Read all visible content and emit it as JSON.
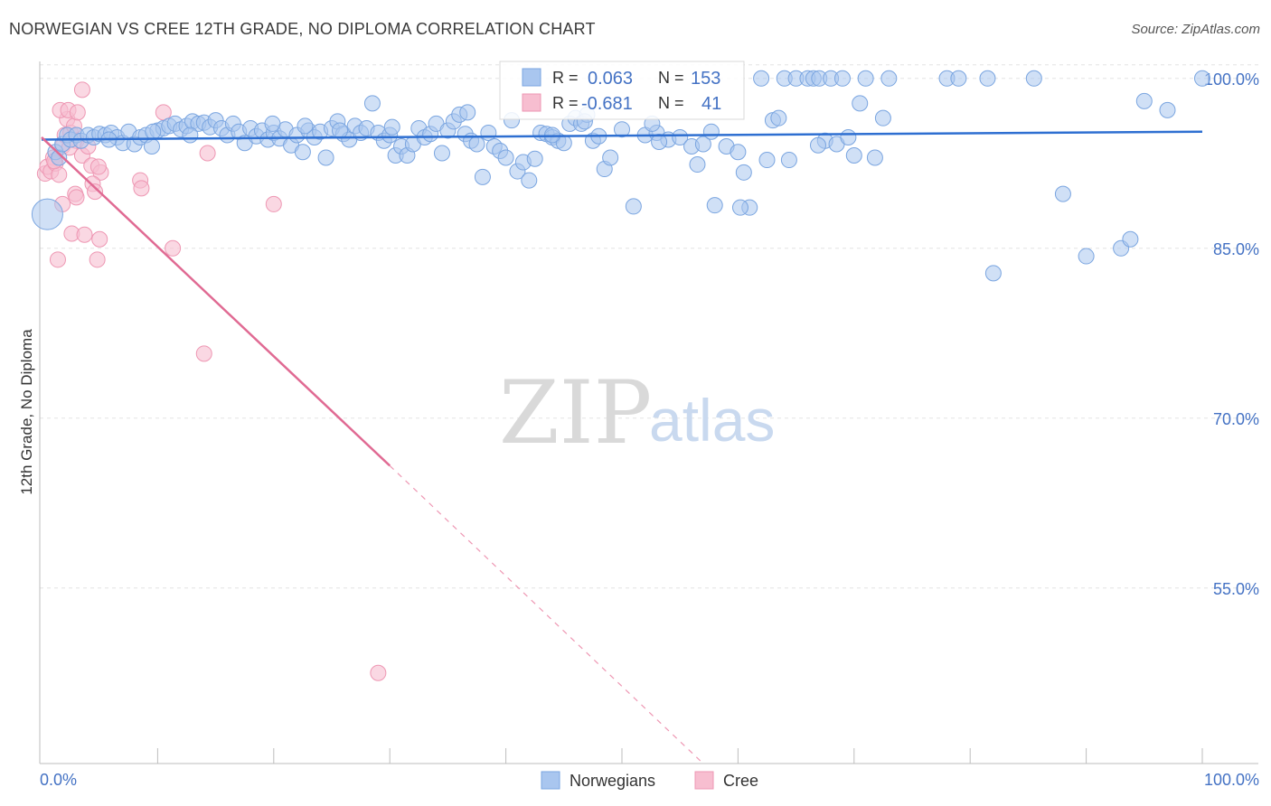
{
  "title": "NORWEGIAN VS CREE 12TH GRADE, NO DIPLOMA CORRELATION CHART",
  "source": "Source: ZipAtlas.com",
  "watermark": {
    "zip": "ZIP",
    "atlas": "atlas"
  },
  "colors": {
    "blue_fill": "#a9c6ef",
    "blue_stroke": "#7aa5e0",
    "blue_line": "#2e6fd1",
    "pink_fill": "#f7bed0",
    "pink_stroke": "#ee97b3",
    "pink_line": "#e06a93",
    "grid": "#e3e3e3",
    "tick_text": "#4472c4"
  },
  "legend": {
    "row1": {
      "r_label": "R =",
      "r_value": "0.063",
      "n_label": "N =",
      "n_value": "153"
    },
    "row2": {
      "r_label": "R =",
      "r_value": "-0.681",
      "n_label": "N =",
      "n_value": "41"
    }
  },
  "bottom_legend": {
    "norwegians": "Norwegians",
    "cree": "Cree"
  },
  "chart_data": {
    "type": "scatter",
    "title": "NORWEGIAN VS CREE 12TH GRADE, NO DIPLOMA CORRELATION CHART",
    "xlabel": "",
    "ylabel": "12th Grade, No Diploma",
    "xlim": [
      0,
      100
    ],
    "ylim": [
      39.5,
      101.5
    ],
    "x_tick_labels": [
      "0.0%",
      "100.0%"
    ],
    "y_ticks": [
      55,
      70,
      85,
      100
    ],
    "y_tick_labels": [
      "55.0%",
      "70.0%",
      "85.0%",
      "100.0%"
    ],
    "grid": true,
    "series": [
      {
        "name": "Norwegians",
        "r": 0.063,
        "n": 153,
        "trend": {
          "x0": 0,
          "y0": 94.6,
          "x1": 100,
          "y1": 95.3
        },
        "points": [
          [
            0.5,
            88.0
          ],
          [
            1.2,
            93.5
          ],
          [
            1.5,
            93.0
          ],
          [
            1.8,
            94.2
          ],
          [
            2.2,
            95.0
          ],
          [
            2.5,
            94.6
          ],
          [
            3.0,
            95.0
          ],
          [
            3.4,
            94.5
          ],
          [
            4.0,
            95.0
          ],
          [
            4.5,
            94.8
          ],
          [
            5.0,
            95.1
          ],
          [
            5.5,
            95.0
          ],
          [
            6.0,
            95.2
          ],
          [
            6.5,
            94.8
          ],
          [
            7.0,
            94.3
          ],
          [
            7.5,
            95.3
          ],
          [
            8.0,
            94.2
          ],
          [
            8.5,
            94.8
          ],
          [
            9.0,
            95.0
          ],
          [
            9.5,
            94.0
          ],
          [
            10.0,
            95.4
          ],
          [
            10.5,
            95.6
          ],
          [
            11.0,
            95.8
          ],
          [
            11.5,
            96.0
          ],
          [
            12.0,
            95.5
          ],
          [
            12.5,
            95.8
          ],
          [
            13.0,
            96.2
          ],
          [
            13.5,
            96.0
          ],
          [
            14.0,
            96.1
          ],
          [
            14.5,
            95.7
          ],
          [
            15.0,
            96.3
          ],
          [
            15.5,
            95.6
          ],
          [
            16.0,
            95.0
          ],
          [
            16.5,
            96.0
          ],
          [
            17.0,
            95.3
          ],
          [
            17.5,
            94.3
          ],
          [
            18.0,
            95.6
          ],
          [
            18.5,
            94.9
          ],
          [
            19.0,
            95.4
          ],
          [
            19.5,
            94.6
          ],
          [
            20.0,
            95.2
          ],
          [
            20.5,
            94.7
          ],
          [
            21.0,
            95.5
          ],
          [
            21.5,
            94.1
          ],
          [
            22.0,
            95.0
          ],
          [
            22.5,
            93.5
          ],
          [
            23.0,
            95.4
          ],
          [
            23.5,
            94.8
          ],
          [
            24.0,
            95.3
          ],
          [
            24.5,
            93.0
          ],
          [
            25.0,
            95.6
          ],
          [
            25.5,
            96.2
          ],
          [
            26.0,
            95.1
          ],
          [
            26.5,
            94.6
          ],
          [
            27.0,
            95.8
          ],
          [
            27.5,
            95.2
          ],
          [
            28.0,
            95.6
          ],
          [
            28.5,
            97.8
          ],
          [
            29.0,
            95.2
          ],
          [
            29.5,
            94.5
          ],
          [
            30.0,
            95.0
          ],
          [
            30.5,
            93.2
          ],
          [
            31.0,
            94.0
          ],
          [
            31.5,
            93.2
          ],
          [
            32.0,
            94.2
          ],
          [
            32.5,
            95.6
          ],
          [
            33.0,
            94.8
          ],
          [
            33.5,
            95.1
          ],
          [
            34.0,
            96.0
          ],
          [
            34.5,
            93.4
          ],
          [
            35.0,
            95.4
          ],
          [
            35.5,
            96.2
          ],
          [
            36.0,
            96.8
          ],
          [
            36.5,
            95.1
          ],
          [
            37.0,
            94.5
          ],
          [
            37.5,
            94.2
          ],
          [
            38.0,
            91.3
          ],
          [
            38.5,
            95.2
          ],
          [
            39.0,
            94.0
          ],
          [
            39.5,
            93.6
          ],
          [
            40.0,
            93.0
          ],
          [
            40.5,
            96.3
          ],
          [
            41.0,
            91.8
          ],
          [
            41.5,
            92.6
          ],
          [
            42.0,
            91.0
          ],
          [
            42.5,
            92.9
          ],
          [
            43.0,
            95.2
          ],
          [
            43.5,
            95.1
          ],
          [
            44.0,
            94.8
          ],
          [
            44.5,
            94.5
          ],
          [
            45.0,
            94.3
          ],
          [
            45.5,
            96.0
          ],
          [
            46.0,
            96.5
          ],
          [
            46.5,
            96.0
          ],
          [
            47.0,
            96.8
          ],
          [
            47.5,
            94.5
          ],
          [
            48.0,
            94.9
          ],
          [
            48.5,
            92.0
          ],
          [
            49.0,
            93.0
          ],
          [
            51.0,
            88.7
          ],
          [
            52.0,
            95.0
          ],
          [
            53.0,
            95.2
          ],
          [
            54.0,
            94.6
          ],
          [
            55.0,
            94.8
          ],
          [
            56.0,
            94.0
          ],
          [
            56.5,
            92.4
          ],
          [
            57.0,
            94.2
          ],
          [
            58.0,
            88.8
          ],
          [
            59.0,
            94.0
          ],
          [
            60.0,
            93.5
          ],
          [
            60.5,
            91.7
          ],
          [
            61.0,
            88.6
          ],
          [
            62.0,
            100.0
          ],
          [
            62.5,
            92.8
          ],
          [
            63.0,
            96.3
          ],
          [
            63.5,
            96.5
          ],
          [
            64.0,
            100.0
          ],
          [
            65.0,
            100.0
          ],
          [
            66.0,
            100.0
          ],
          [
            66.5,
            100.0
          ],
          [
            67.0,
            100.0
          ],
          [
            67.5,
            94.5
          ],
          [
            68.0,
            100.0
          ],
          [
            68.5,
            94.2
          ],
          [
            69.0,
            100.0
          ],
          [
            69.5,
            94.8
          ],
          [
            70.0,
            93.2
          ],
          [
            70.5,
            97.8
          ],
          [
            71.0,
            100.0
          ],
          [
            72.5,
            96.5
          ],
          [
            73.0,
            100.0
          ],
          [
            78.0,
            100.0
          ],
          [
            79.0,
            100.0
          ],
          [
            81.5,
            100.0
          ],
          [
            85.5,
            100.0
          ],
          [
            90.0,
            84.3
          ],
          [
            93.0,
            85.0
          ],
          [
            93.8,
            85.8
          ],
          [
            95.0,
            98.0
          ],
          [
            97.0,
            97.2
          ],
          [
            100.0,
            100.0
          ],
          [
            88.0,
            89.8
          ],
          [
            60.2,
            88.6
          ],
          [
            82.0,
            82.8
          ],
          [
            5.8,
            94.6
          ],
          [
            12.8,
            95.0
          ],
          [
            19.9,
            96.0
          ],
          [
            25.7,
            95.4
          ],
          [
            30.2,
            95.7
          ],
          [
            36.7,
            97.0
          ],
          [
            44.0,
            95.0
          ],
          [
            50.0,
            95.5
          ],
          [
            53.2,
            94.4
          ],
          [
            57.7,
            95.3
          ],
          [
            64.4,
            92.8
          ],
          [
            66.9,
            94.1
          ],
          [
            71.8,
            93.0
          ],
          [
            46.8,
            96.2
          ],
          [
            52.6,
            96.0
          ],
          [
            9.6,
            95.3
          ],
          [
            22.7,
            95.8
          ]
        ]
      },
      {
        "name": "Cree",
        "r": -0.681,
        "n": 41,
        "trend": {
          "x0": 0,
          "y0": 94.8,
          "x1": 30,
          "y1": 65.8,
          "dash_to_x": 57,
          "dash_to_y": 39.5
        },
        "points": [
          [
            0.3,
            91.6
          ],
          [
            0.5,
            92.2
          ],
          [
            0.8,
            91.8
          ],
          [
            1.0,
            93.0
          ],
          [
            1.2,
            92.5
          ],
          [
            1.5,
            91.5
          ],
          [
            1.8,
            94.0
          ],
          [
            2.0,
            95.0
          ],
          [
            2.2,
            96.4
          ],
          [
            2.5,
            95.2
          ],
          [
            2.8,
            95.8
          ],
          [
            3.0,
            94.5
          ],
          [
            3.5,
            93.2
          ],
          [
            4.0,
            94.0
          ],
          [
            1.4,
            84.0
          ],
          [
            2.6,
            86.3
          ],
          [
            3.7,
            86.2
          ],
          [
            4.8,
            84.0
          ],
          [
            5.0,
            85.8
          ],
          [
            2.4,
            93.9
          ],
          [
            1.6,
            97.2
          ],
          [
            2.3,
            97.2
          ],
          [
            3.1,
            97.0
          ],
          [
            3.5,
            99.0
          ],
          [
            4.3,
            92.3
          ],
          [
            5.1,
            91.7
          ],
          [
            4.4,
            90.7
          ],
          [
            4.6,
            90.0
          ],
          [
            2.9,
            89.8
          ],
          [
            3.0,
            89.5
          ],
          [
            1.8,
            88.9
          ],
          [
            8.5,
            91.0
          ],
          [
            8.6,
            90.3
          ],
          [
            10.5,
            97.0
          ],
          [
            11.3,
            85.0
          ],
          [
            14.3,
            93.4
          ],
          [
            20.0,
            88.9
          ],
          [
            14.0,
            75.7
          ],
          [
            29.0,
            47.5
          ],
          [
            4.9,
            92.2
          ],
          [
            1.1,
            92.7
          ]
        ]
      }
    ]
  }
}
